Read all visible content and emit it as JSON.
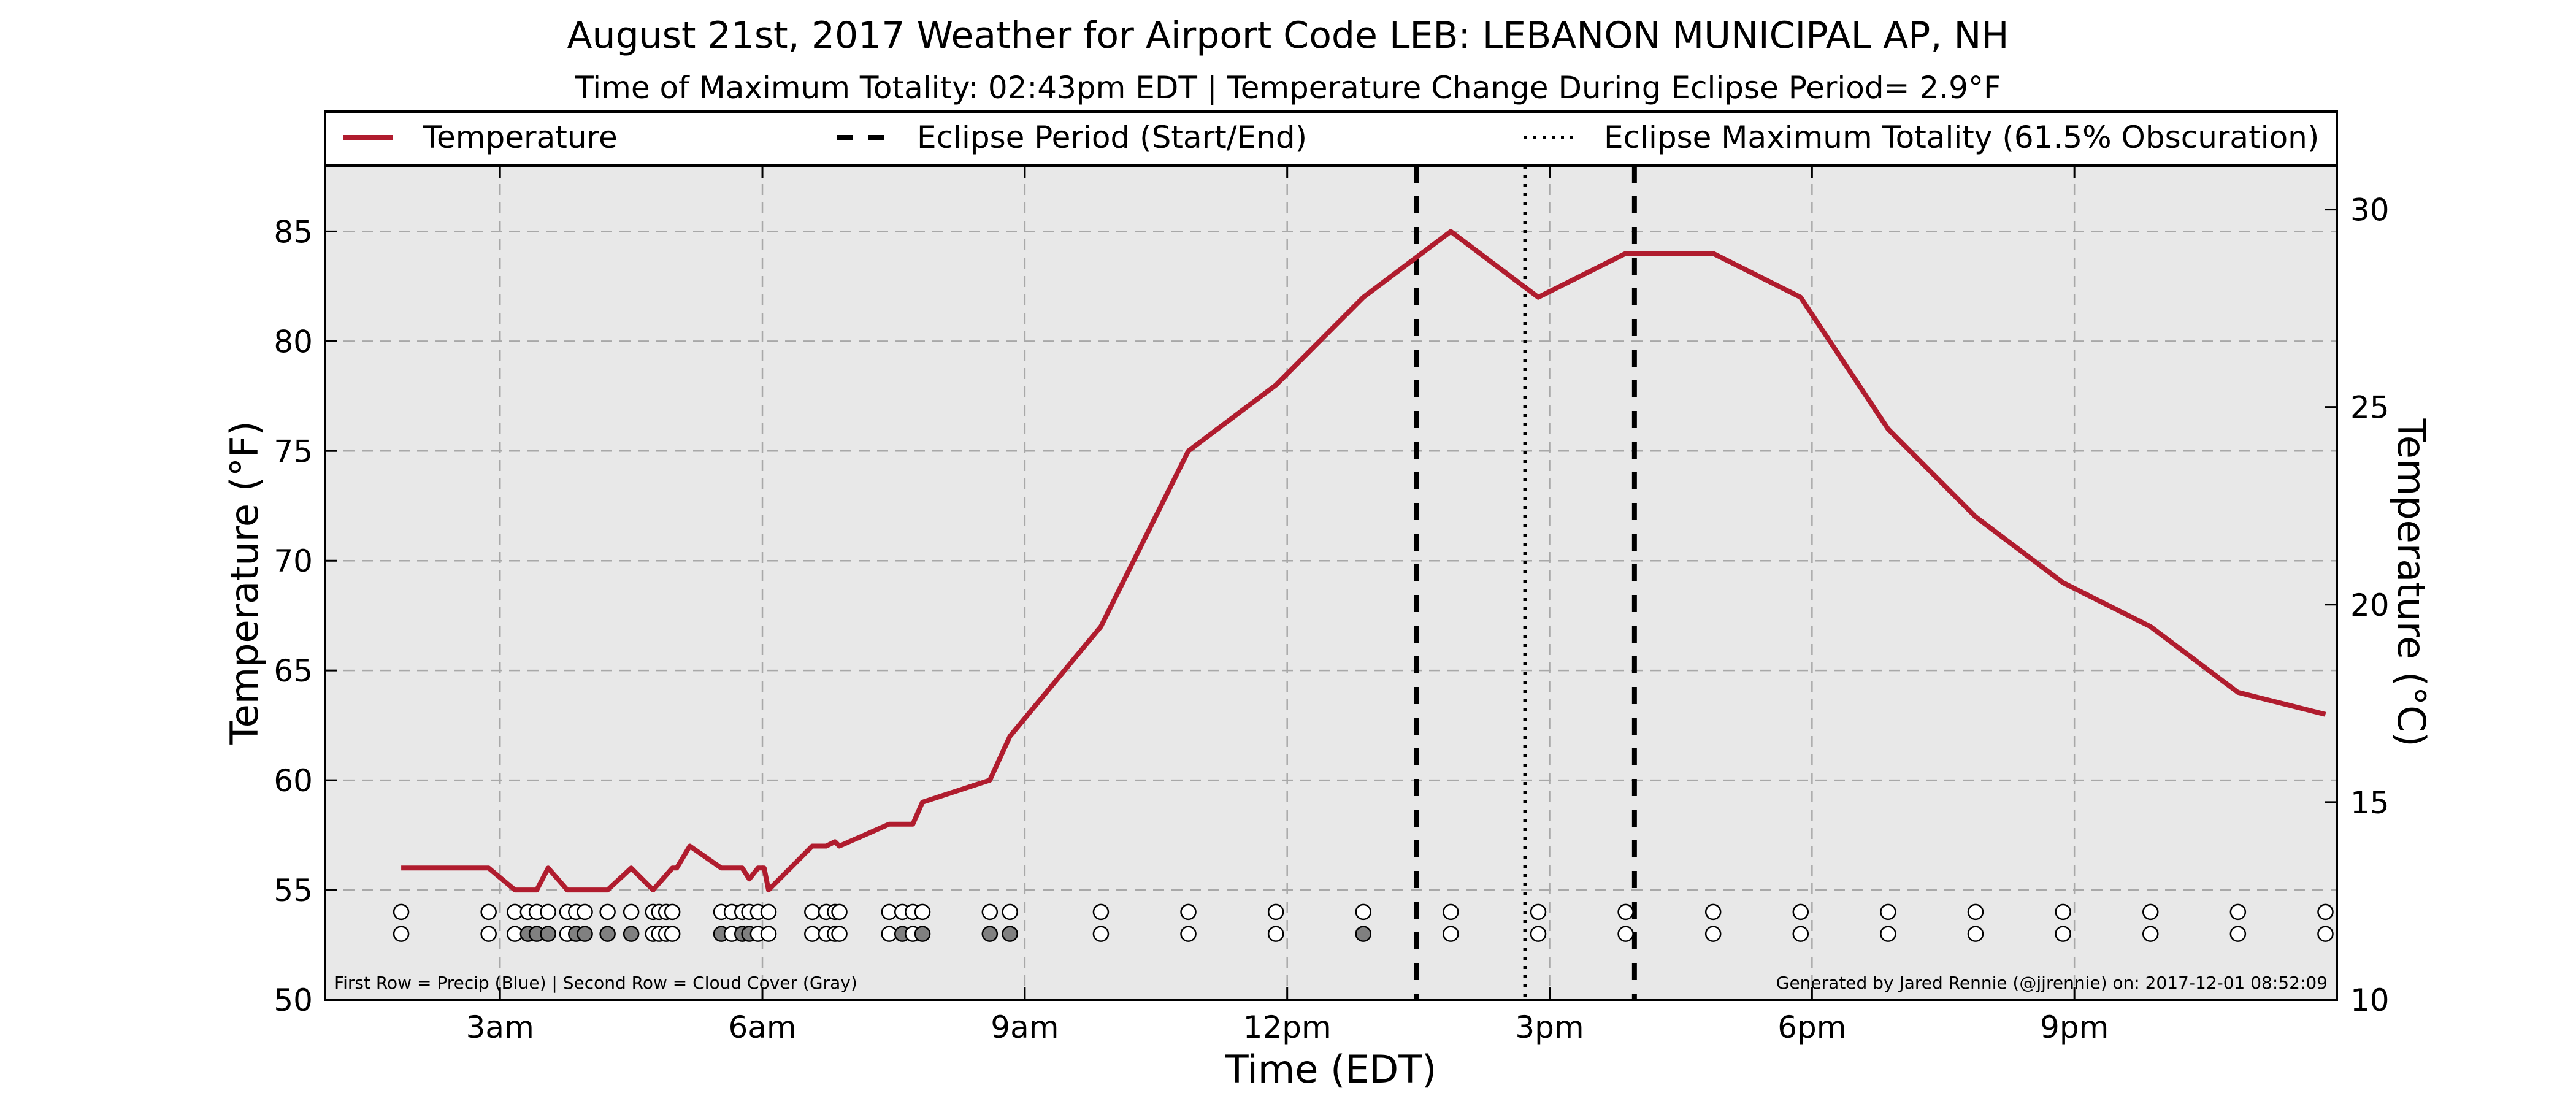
{
  "chart_data": {
    "type": "line",
    "title": "August 21st, 2017 Weather for Airport Code LEB: LEBANON MUNICIPAL AP, NH",
    "subtitle": "Time of Maximum Totality: 02:43pm EDT | Temperature Change During Eclipse Period= 2.9°F",
    "xlabel": "Time (EDT)",
    "ylabel": "Temperature (°F)",
    "ylabel_right": "Temperature (°C)",
    "x_tick_labels": [
      "3am",
      "6am",
      "9am",
      "12pm",
      "3pm",
      "6pm",
      "9pm"
    ],
    "x_tick_hours": [
      3,
      6,
      9,
      12,
      15,
      18,
      21
    ],
    "xlim_hours": [
      1,
      24
    ],
    "y_ticks_f": [
      50,
      55,
      60,
      65,
      70,
      75,
      80,
      85
    ],
    "ylim_f": [
      50,
      88
    ],
    "y_ticks_c": [
      10,
      15,
      20,
      25,
      30
    ],
    "grid": true,
    "legend_position": "top",
    "legend": [
      "Temperature",
      "Eclipse Period (Start/End)",
      "Eclipse Maximum Totality (61.5% Obscuration)"
    ],
    "eclipse_start_hour": 13.48,
    "eclipse_end_hour": 15.97,
    "max_totality_hour": 14.72,
    "series": [
      {
        "name": "Temperature",
        "color": "#b01c2e",
        "x_hours": [
          1.87,
          2.87,
          3.17,
          3.42,
          3.55,
          3.77,
          4.23,
          4.5,
          4.75,
          4.97,
          5.02,
          5.17,
          5.53,
          5.77,
          5.85,
          5.95,
          6.02,
          6.07,
          6.57,
          6.73,
          6.83,
          6.88,
          7.45,
          7.72,
          7.83,
          8.6,
          8.83,
          9.87,
          10.87,
          11.87,
          12.87,
          13.87,
          14.87,
          15.87,
          16.87,
          17.87,
          18.87,
          19.87,
          20.87,
          21.87,
          22.87,
          23.87
        ],
        "temp_f": [
          56,
          56,
          55,
          55,
          56,
          55,
          55,
          56,
          55,
          56,
          56,
          57,
          56,
          56,
          55.5,
          56,
          56,
          55,
          57,
          57,
          57.2,
          57,
          58,
          58,
          59,
          60,
          62,
          67,
          75,
          78,
          82,
          85,
          82,
          84,
          84,
          82,
          76,
          72,
          69,
          67,
          64,
          63
        ]
      }
    ],
    "obs_rows": {
      "precip_color": "#5b7fd1",
      "cloud_color": "#808080",
      "row1_precip_hours": [
        1.87,
        2.87,
        3.17,
        3.32,
        3.42,
        3.55,
        3.77,
        3.87,
        3.97,
        4.23,
        4.5,
        4.75,
        4.82,
        4.9,
        4.97,
        5.53,
        5.65,
        5.77,
        5.85,
        5.95,
        6.07,
        6.57,
        6.73,
        6.83,
        6.88,
        7.45,
        7.6,
        7.72,
        7.83,
        8.6,
        8.83,
        9.87,
        10.87,
        11.87,
        12.87,
        13.87,
        14.87,
        15.87,
        16.87,
        17.87,
        18.87,
        19.87,
        20.87,
        21.87,
        22.87,
        23.87
      ],
      "row2_cloud_hours": [
        1.87,
        2.87,
        3.17,
        3.32,
        3.42,
        3.55,
        3.77,
        3.87,
        3.97,
        4.23,
        4.5,
        4.75,
        4.82,
        4.9,
        4.97,
        5.53,
        5.65,
        5.77,
        5.85,
        5.95,
        6.07,
        6.57,
        6.73,
        6.83,
        6.88,
        7.45,
        7.6,
        7.72,
        7.83,
        8.6,
        8.83,
        9.87,
        10.87,
        11.87,
        12.87,
        13.87,
        14.87,
        15.87,
        16.87,
        17.87,
        18.87,
        19.87,
        20.87,
        21.87,
        22.87,
        23.87
      ],
      "row2_gray_hours": [
        3.32,
        3.42,
        3.55,
        3.87,
        3.97,
        4.23,
        4.5,
        5.53,
        5.77,
        5.85,
        7.6,
        7.83,
        8.6,
        8.83,
        12.87
      ]
    },
    "footnote_left": "First Row = Precip (Blue) | Second Row = Cloud Cover (Gray)",
    "footnote_right": "Generated by Jared Rennie (@jjrennie) on: 2017-12-01 08:52:09"
  }
}
